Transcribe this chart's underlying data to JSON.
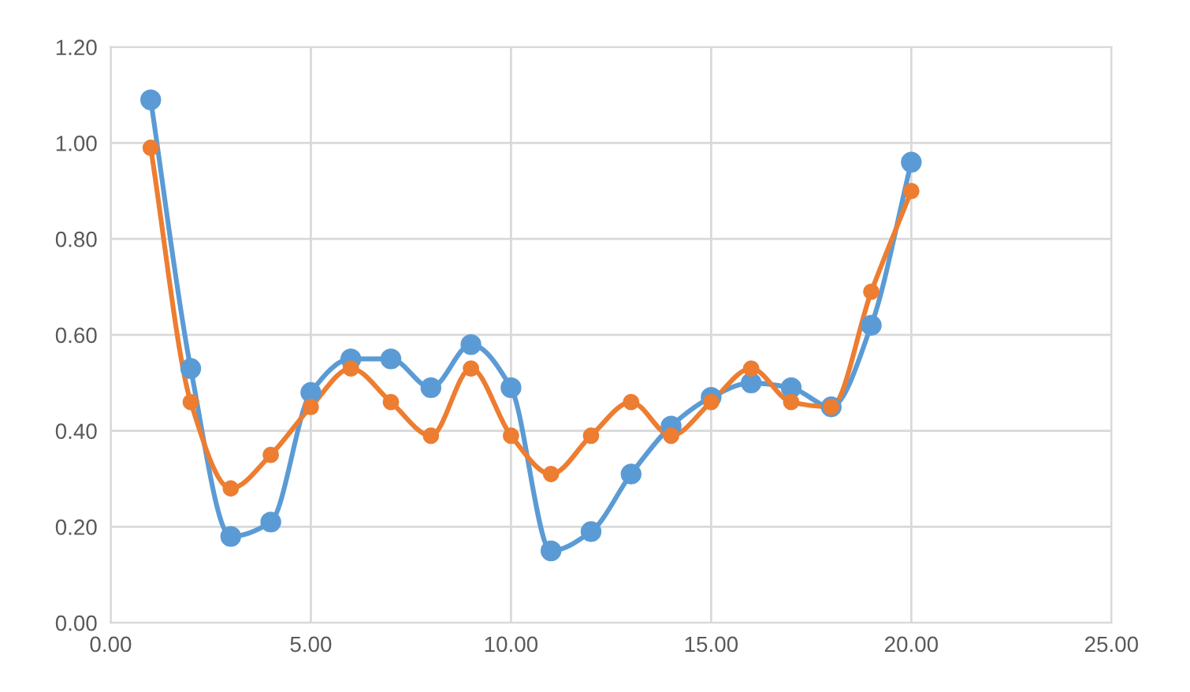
{
  "chart_data": {
    "type": "line",
    "x": [
      1,
      2,
      3,
      4,
      5,
      6,
      7,
      8,
      9,
      10,
      11,
      12,
      13,
      14,
      15,
      16,
      17,
      18,
      19,
      20
    ],
    "series": [
      {
        "color": "#5b9bd5",
        "values": [
          1.09,
          0.53,
          0.18,
          0.21,
          0.48,
          0.55,
          0.55,
          0.49,
          0.58,
          0.49,
          0.15,
          0.19,
          0.31,
          0.41,
          0.47,
          0.5,
          0.49,
          0.45,
          0.62,
          0.96
        ]
      },
      {
        "color": "#ed7d31",
        "values": [
          0.99,
          0.46,
          0.28,
          0.35,
          0.45,
          0.53,
          0.46,
          0.39,
          0.53,
          0.39,
          0.31,
          0.39,
          0.46,
          0.39,
          0.46,
          0.53,
          0.46,
          0.45,
          0.69,
          0.9
        ]
      }
    ],
    "xlim": [
      0,
      25
    ],
    "xticks": [
      {
        "value": 0,
        "label": "0.00"
      },
      {
        "value": 5,
        "label": "5.00"
      },
      {
        "value": 10,
        "label": "10.00"
      },
      {
        "value": 15,
        "label": "15.00"
      },
      {
        "value": 20,
        "label": "20.00"
      },
      {
        "value": 25,
        "label": "25.00"
      }
    ],
    "ylim": [
      0,
      1.2
    ],
    "yticks": [
      {
        "value": 0,
        "label": "0.00"
      },
      {
        "value": 0.2,
        "label": "0.20"
      },
      {
        "value": 0.4,
        "label": "0.40"
      },
      {
        "value": 0.6,
        "label": "0.60"
      },
      {
        "value": 0.8,
        "label": "0.80"
      },
      {
        "value": 1.0,
        "label": "1.00"
      },
      {
        "value": 1.2,
        "label": "1.20"
      }
    ],
    "grid": true,
    "marker": "circle",
    "line_style": "solid",
    "legend": false
  }
}
